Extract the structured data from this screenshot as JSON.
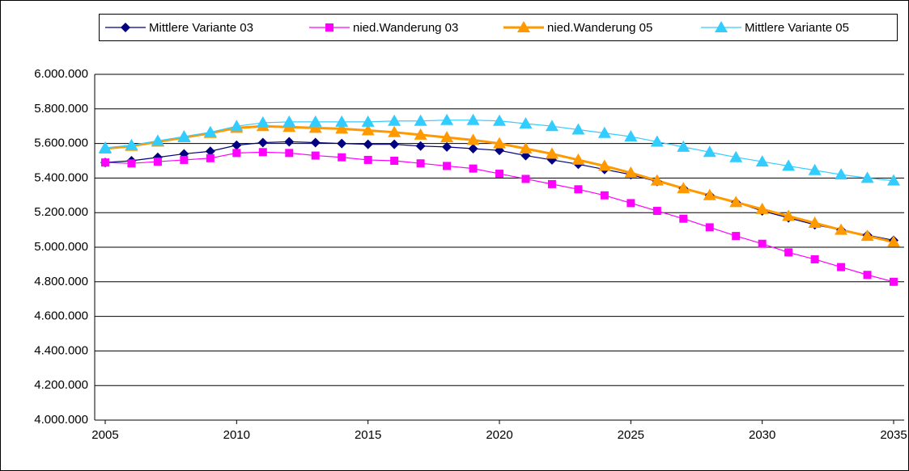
{
  "chart_data": {
    "type": "line",
    "x": [
      2005,
      2006,
      2007,
      2008,
      2009,
      2010,
      2011,
      2012,
      2013,
      2014,
      2015,
      2016,
      2017,
      2018,
      2019,
      2020,
      2021,
      2022,
      2023,
      2024,
      2025,
      2026,
      2027,
      2028,
      2029,
      2030,
      2031,
      2032,
      2033,
      2034,
      2035
    ],
    "series": [
      {
        "name": "Mittlere Variante 03",
        "color": "#000080",
        "marker": "diamond",
        "values": [
          5490000,
          5500000,
          5520000,
          5540000,
          5555000,
          5590000,
          5605000,
          5610000,
          5605000,
          5600000,
          5595000,
          5595000,
          5585000,
          5580000,
          5570000,
          5560000,
          5530000,
          5505000,
          5480000,
          5450000,
          5420000,
          5380000,
          5340000,
          5300000,
          5260000,
          5210000,
          5170000,
          5130000,
          5100000,
          5070000,
          5040000
        ]
      },
      {
        "name": "nied.Wanderung 03",
        "color": "#ff00ff",
        "marker": "square",
        "values": [
          5490000,
          5485000,
          5495000,
          5505000,
          5515000,
          5545000,
          5550000,
          5545000,
          5530000,
          5520000,
          5505000,
          5500000,
          5485000,
          5470000,
          5455000,
          5425000,
          5395000,
          5365000,
          5335000,
          5300000,
          5255000,
          5210000,
          5165000,
          5115000,
          5065000,
          5020000,
          4970000,
          4930000,
          4885000,
          4840000,
          4800000
        ]
      },
      {
        "name": "nied.Wanderung 05",
        "color": "#ff9900",
        "marker": "triangle",
        "values": [
          5570000,
          5585000,
          5610000,
          5635000,
          5660000,
          5690000,
          5700000,
          5695000,
          5690000,
          5685000,
          5675000,
          5665000,
          5650000,
          5635000,
          5620000,
          5600000,
          5570000,
          5540000,
          5505000,
          5470000,
          5430000,
          5385000,
          5340000,
          5300000,
          5260000,
          5220000,
          5180000,
          5140000,
          5100000,
          5065000,
          5030000
        ]
      },
      {
        "name": "Mittlere Variante 05",
        "color": "#33ccff",
        "marker": "triangle",
        "values": [
          5575000,
          5590000,
          5615000,
          5640000,
          5665000,
          5700000,
          5720000,
          5725000,
          5725000,
          5725000,
          5725000,
          5730000,
          5730000,
          5735000,
          5735000,
          5730000,
          5715000,
          5700000,
          5680000,
          5660000,
          5640000,
          5610000,
          5580000,
          5550000,
          5520000,
          5495000,
          5470000,
          5445000,
          5420000,
          5400000,
          5385000
        ]
      }
    ],
    "xlim": [
      2004.6,
      2035.4
    ],
    "xticks": [
      2005,
      2010,
      2015,
      2020,
      2025,
      2030,
      2035
    ],
    "ylim": [
      4000000,
      6000000
    ],
    "yticks": [
      {
        "value": 4000000,
        "label": "4.000.000"
      },
      {
        "value": 4200000,
        "label": "4.200.000"
      },
      {
        "value": 4400000,
        "label": "4.400.000"
      },
      {
        "value": 4600000,
        "label": "4.600.000"
      },
      {
        "value": 4800000,
        "label": "4.800.000"
      },
      {
        "value": 5000000,
        "label": "5.000.000"
      },
      {
        "value": 5200000,
        "label": "5.200.000"
      },
      {
        "value": 5400000,
        "label": "5.400.000"
      },
      {
        "value": 5600000,
        "label": "5.600.000"
      },
      {
        "value": 5800000,
        "label": "5.800.000"
      },
      {
        "value": 6000000,
        "label": "6.000.000"
      }
    ],
    "grid": true,
    "legend": "top"
  }
}
